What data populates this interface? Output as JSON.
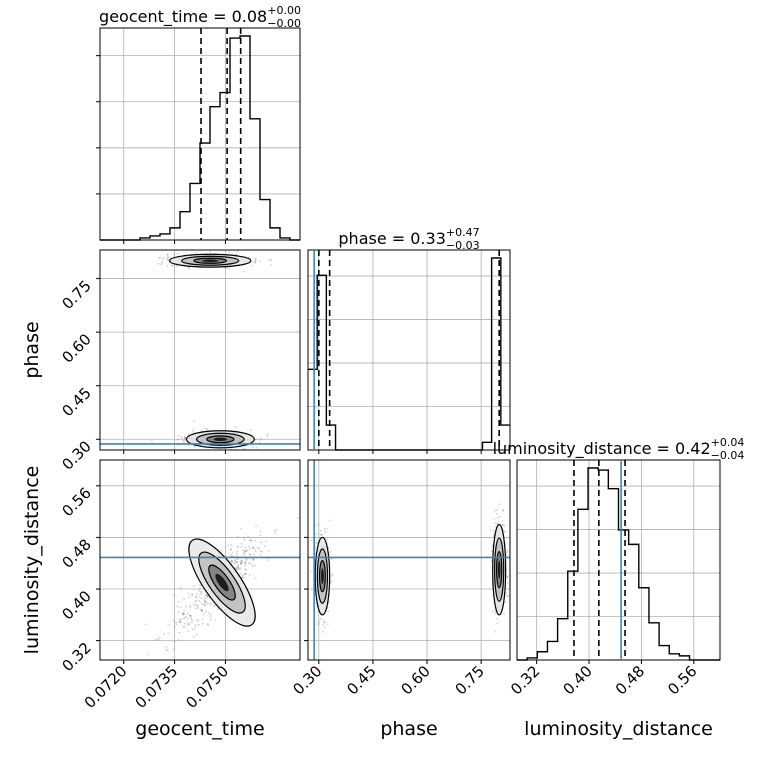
{
  "chart_data": {
    "type": "corner",
    "grid": true,
    "truth_color": "#4682b4",
    "hist_color": "#000000",
    "params": [
      {
        "name": "geocent_time",
        "xlabel": "geocent_time",
        "title_prefix": "geocent_time = ",
        "median": "0.08",
        "plus": "+0.00",
        "minus": "−0.00",
        "range": [
          0.0713,
          0.0772
        ],
        "ticks": [
          0.072,
          0.0735,
          0.075
        ],
        "tick_labels": [
          "0.0720",
          "0.0735",
          "0.0750"
        ],
        "quantiles": [
          0.07428,
          0.07505,
          0.07545
        ],
        "truth": null,
        "hist_bins": [
          0.0713,
          0.0772
        ],
        "hist": [
          0,
          0,
          0,
          0,
          1,
          2,
          3,
          6,
          14,
          28,
          48,
          66,
          73,
          100,
          101,
          60,
          20,
          6,
          1,
          0
        ]
      },
      {
        "name": "phase",
        "xlabel": "phase",
        "title_prefix": "phase = ",
        "median": "0.33",
        "plus": "+0.47",
        "minus": "−0.03",
        "range": [
          0.27,
          0.83
        ],
        "ticks": [
          0.3,
          0.45,
          0.6,
          0.75
        ],
        "tick_labels": [
          "0.30",
          "0.45",
          "0.60",
          "0.75"
        ],
        "quantiles": [
          0.3,
          0.33,
          0.8
        ],
        "truth": 0.287,
        "hist": [
          42,
          91,
          13,
          0,
          0,
          0,
          0,
          0,
          0,
          0,
          0,
          0,
          0,
          0,
          0,
          0,
          0,
          0,
          0,
          4,
          100,
          13
        ]
      },
      {
        "name": "luminosity_distance",
        "xlabel": "luminosity_distance",
        "title_prefix": "luminosity_distance = ",
        "median": "0.42",
        "plus": "+0.04",
        "minus": "−0.04",
        "range": [
          0.29,
          0.6
        ],
        "ticks": [
          0.32,
          0.4,
          0.48,
          0.56
        ],
        "tick_labels": [
          "0.32",
          "0.40",
          "0.48",
          "0.56"
        ],
        "quantiles": [
          0.377,
          0.415,
          0.455
        ],
        "truth": 0.449,
        "hist": [
          0,
          1,
          4,
          9,
          20,
          43,
          73,
          93,
          92,
          83,
          63,
          56,
          35,
          18,
          7,
          3,
          2,
          0,
          0,
          0
        ]
      }
    ],
    "pairs": [
      {
        "x": "geocent_time",
        "y": "phase",
        "truth_y": 0.287,
        "modes": [
          {
            "x": 0.07485,
            "y": 0.3,
            "sx": 0.0005,
            "sy": 0.012
          },
          {
            "x": 0.07455,
            "y": 0.8,
            "sx": 0.0006,
            "sy": 0.009
          }
        ]
      },
      {
        "x": "geocent_time",
        "y": "luminosity_distance",
        "truth_y": 0.449,
        "modes": [
          {
            "x": 0.0749,
            "y": 0.41,
            "sx": 0.0007,
            "sy": 0.04
          }
        ]
      },
      {
        "x": "phase",
        "y": "luminosity_distance",
        "truth_x": 0.287,
        "truth_y": 0.449,
        "modes": [
          {
            "x": 0.31,
            "y": 0.42,
            "sx": 0.01,
            "sy": 0.03
          },
          {
            "x": 0.8,
            "y": 0.43,
            "sx": 0.009,
            "sy": 0.035
          }
        ]
      }
    ]
  }
}
